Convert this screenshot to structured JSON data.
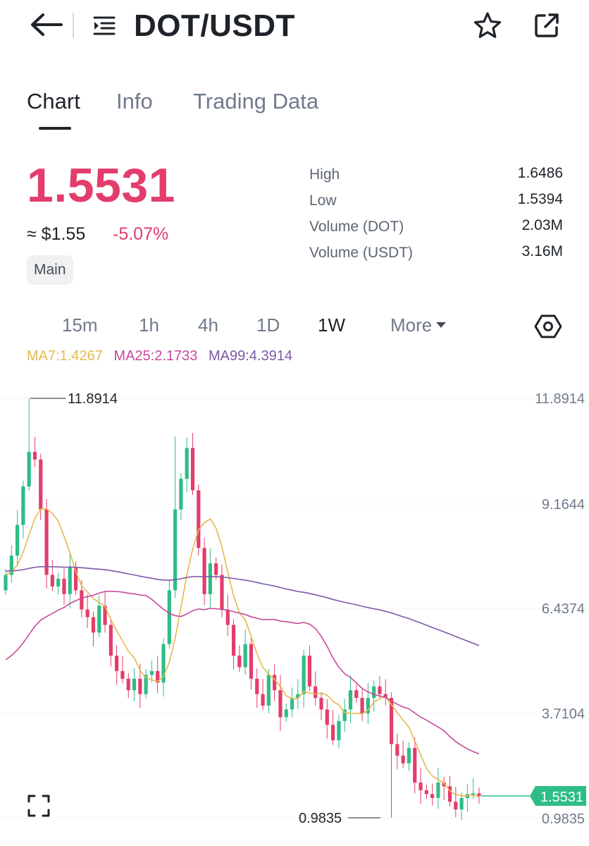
{
  "header": {
    "title": "DOT/USDT"
  },
  "tabs": [
    {
      "label": "Chart",
      "active": true
    },
    {
      "label": "Info",
      "active": false
    },
    {
      "label": "Trading Data",
      "active": false
    }
  ],
  "price": {
    "last": "1.5531",
    "approx": "≈ $1.55",
    "change": "-5.07%",
    "badge": "Main"
  },
  "stats": [
    {
      "label": "High",
      "value": "1.6486"
    },
    {
      "label": "Low",
      "value": "1.5394"
    },
    {
      "label": "Volume (DOT)",
      "value": "2.03M"
    },
    {
      "label": "Volume (USDT)",
      "value": "3.16M"
    }
  ],
  "intervals": [
    {
      "label": "15m",
      "active": false
    },
    {
      "label": "1h",
      "active": false
    },
    {
      "label": "4h",
      "active": false
    },
    {
      "label": "1D",
      "active": false
    },
    {
      "label": "1W",
      "active": true
    },
    {
      "label": "More",
      "active": false
    }
  ],
  "ma": {
    "ma7": "MA7:1.4267",
    "ma25": "MA25:2.1733",
    "ma99": "MA99:4.3914"
  },
  "colors": {
    "up": "#2ebd85",
    "down": "#e33d6b",
    "ma7": "#e6b84f",
    "ma25": "#c7489b",
    "ma99": "#7c59a8",
    "axis_text": "#707a8a"
  },
  "chart_data": {
    "type": "candlestick",
    "interval": "1W",
    "y_ticks": [
      "11.8914",
      "9.1644",
      "6.4374",
      "3.7104",
      "0.9835"
    ],
    "ylim": [
      0.9835,
      11.8914
    ],
    "high_marker": "11.8914",
    "low_marker": "0.9835",
    "current_price_tag": "1.5531",
    "closes": [
      7.3,
      7.8,
      8.6,
      9.6,
      10.5,
      10.3,
      9.0,
      7.3,
      7.0,
      7.2,
      6.8,
      7.5,
      6.9,
      6.4,
      6.2,
      5.8,
      6.5,
      6.0,
      5.2,
      4.8,
      4.6,
      4.3,
      4.6,
      4.2,
      4.7,
      4.8,
      4.5,
      5.5,
      6.9,
      9.0,
      9.8,
      10.6,
      9.5,
      8.0,
      6.8,
      7.6,
      7.3,
      6.4,
      6.0,
      5.2,
      4.9,
      5.5,
      4.6,
      4.2,
      3.9,
      4.7,
      4.3,
      3.6,
      3.8,
      4.1,
      4.2,
      5.2,
      4.4,
      4.1,
      3.8,
      3.4,
      3.0,
      3.5,
      3.8,
      4.3,
      4.1,
      3.7,
      4.1,
      4.4,
      4.2,
      4.1,
      2.9,
      2.6,
      2.4,
      2.8,
      1.9,
      1.7,
      1.6,
      1.5,
      1.9,
      1.8,
      1.4,
      1.2,
      1.5,
      1.6,
      1.62,
      1.5531
    ]
  }
}
